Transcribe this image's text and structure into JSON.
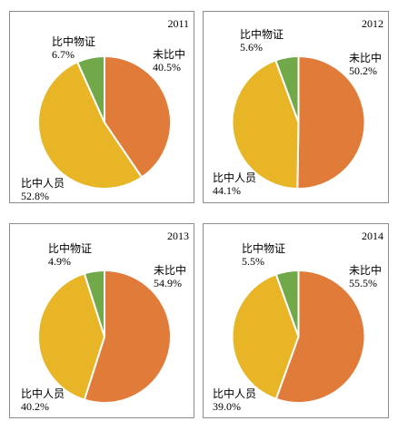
{
  "colors": {
    "unmatched": "#E07B39",
    "person": "#E8B526",
    "evidence": "#70A84A",
    "edge": "#ffffff"
  },
  "chart_data": [
    {
      "type": "pie",
      "year": "2011",
      "slices": [
        {
          "label": "未比中",
          "value": 40.5,
          "display": "40.5%",
          "color_key": "unmatched"
        },
        {
          "label": "比中人员",
          "value": 52.8,
          "display": "52.8%",
          "color_key": "person"
        },
        {
          "label": "比中物证",
          "value": 6.7,
          "display": "6.7%",
          "color_key": "evidence"
        }
      ]
    },
    {
      "type": "pie",
      "year": "2012",
      "slices": [
        {
          "label": "未比中",
          "value": 50.2,
          "display": "50.2%",
          "color_key": "unmatched"
        },
        {
          "label": "比中人员",
          "value": 44.1,
          "display": "44.1%",
          "color_key": "person"
        },
        {
          "label": "比中物证",
          "value": 5.6,
          "display": "5.6%",
          "color_key": "evidence"
        }
      ]
    },
    {
      "type": "pie",
      "year": "2013",
      "slices": [
        {
          "label": "未比中",
          "value": 54.9,
          "display": "54.9%",
          "color_key": "unmatched"
        },
        {
          "label": "比中人员",
          "value": 40.2,
          "display": "40.2%",
          "color_key": "person"
        },
        {
          "label": "比中物证",
          "value": 4.9,
          "display": "4.9%",
          "color_key": "evidence"
        }
      ]
    },
    {
      "type": "pie",
      "year": "2014",
      "slices": [
        {
          "label": "未比中",
          "value": 55.5,
          "display": "55.5%",
          "color_key": "unmatched"
        },
        {
          "label": "比中人员",
          "value": 39.0,
          "display": "39.0%",
          "color_key": "person"
        },
        {
          "label": "比中物证",
          "value": 5.5,
          "display": "5.5%",
          "color_key": "evidence"
        }
      ]
    }
  ]
}
